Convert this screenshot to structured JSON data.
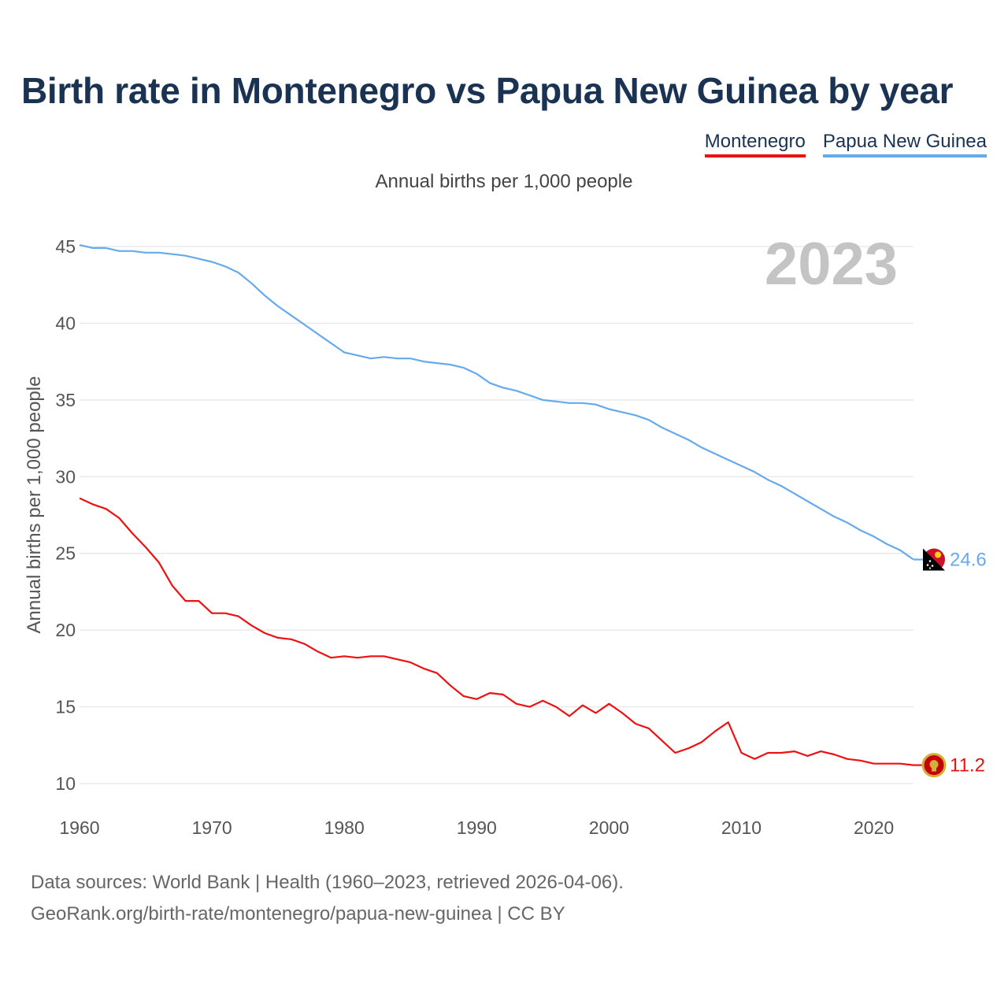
{
  "chart_data": {
    "type": "line",
    "title": "Birth rate in Montenegro vs Papua New Guinea by year",
    "subtitle": "Annual births per 1,000 people",
    "ylabel": "Annual births per 1,000 people",
    "xlabel": "",
    "year_label": "2023",
    "xlim": [
      1960,
      2023
    ],
    "ylim": [
      10,
      45
    ],
    "x_ticks": [
      "1960",
      "1970",
      "1980",
      "1990",
      "2000",
      "2010",
      "2020"
    ],
    "y_ticks": [
      "10",
      "15",
      "20",
      "25",
      "30",
      "35",
      "40",
      "45"
    ],
    "x": [
      1960,
      1961,
      1962,
      1963,
      1964,
      1965,
      1966,
      1967,
      1968,
      1969,
      1970,
      1971,
      1972,
      1973,
      1974,
      1975,
      1976,
      1977,
      1978,
      1979,
      1980,
      1981,
      1982,
      1983,
      1984,
      1985,
      1986,
      1987,
      1988,
      1989,
      1990,
      1991,
      1992,
      1993,
      1994,
      1995,
      1996,
      1997,
      1998,
      1999,
      2000,
      2001,
      2002,
      2003,
      2004,
      2005,
      2006,
      2007,
      2008,
      2009,
      2010,
      2011,
      2012,
      2013,
      2014,
      2015,
      2016,
      2017,
      2018,
      2019,
      2020,
      2021,
      2022,
      2023
    ],
    "series": [
      {
        "name": "Montenegro",
        "color": "#ee1111",
        "end_label": "11.2",
        "values": [
          28.6,
          28.2,
          27.9,
          27.3,
          26.3,
          25.4,
          24.4,
          22.9,
          21.9,
          21.9,
          21.1,
          21.1,
          20.9,
          20.3,
          19.8,
          19.5,
          19.4,
          19.1,
          18.6,
          18.2,
          18.3,
          18.2,
          18.3,
          18.3,
          18.1,
          17.9,
          17.5,
          17.2,
          16.4,
          15.7,
          15.5,
          15.9,
          15.8,
          15.2,
          15.0,
          15.4,
          15.0,
          14.4,
          15.1,
          14.6,
          15.2,
          14.6,
          13.9,
          13.6,
          12.8,
          12.0,
          12.3,
          12.7,
          13.4,
          14.0,
          12.0,
          11.6,
          12.0,
          12.0,
          12.1,
          11.8,
          12.1,
          11.9,
          11.6,
          11.5,
          11.3,
          11.3,
          11.3,
          11.2
        ]
      },
      {
        "name": "Papua New Guinea",
        "color": "#66aaee",
        "end_label": "24.6",
        "values": [
          45.1,
          44.9,
          44.9,
          44.7,
          44.7,
          44.6,
          44.6,
          44.5,
          44.4,
          44.2,
          44.0,
          43.7,
          43.3,
          42.6,
          41.8,
          41.1,
          40.5,
          39.9,
          39.3,
          38.7,
          38.1,
          37.9,
          37.7,
          37.8,
          37.7,
          37.7,
          37.5,
          37.4,
          37.3,
          37.1,
          36.7,
          36.1,
          35.8,
          35.6,
          35.3,
          35.0,
          34.9,
          34.8,
          34.8,
          34.7,
          34.4,
          34.2,
          34.0,
          33.7,
          33.2,
          32.8,
          32.4,
          31.9,
          31.5,
          31.1,
          30.7,
          30.3,
          29.8,
          29.4,
          28.9,
          28.4,
          27.9,
          27.4,
          27.0,
          26.5,
          26.1,
          25.6,
          25.2,
          24.6
        ]
      }
    ]
  },
  "legend": [
    {
      "label": "Montenegro",
      "color": "#ee1111"
    },
    {
      "label": "Papua New Guinea",
      "color": "#66aaee"
    }
  ],
  "footer": {
    "line1": "Data sources: World Bank | Health (1960–2023, retrieved 2026-04-06).",
    "line2": "GeoRank.org/birth-rate/montenegro/papua-new-guinea | CC BY"
  }
}
